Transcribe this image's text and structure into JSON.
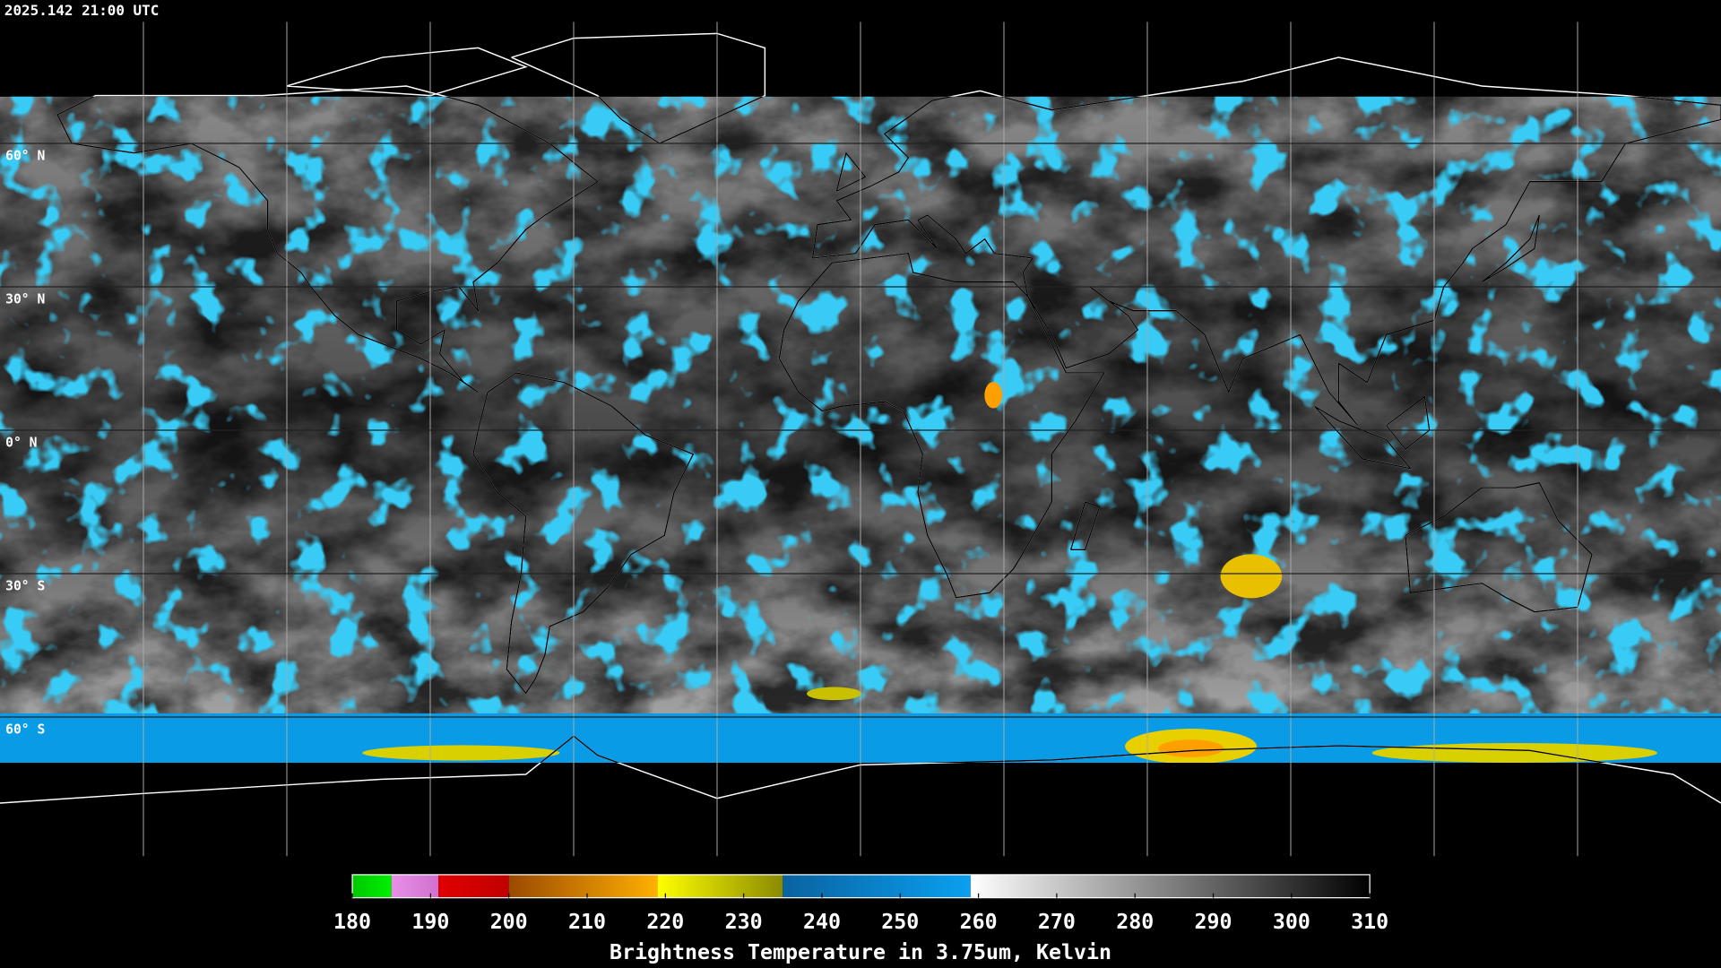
{
  "header": {
    "timestamp": "2025.142 21:00 UTC"
  },
  "map": {
    "latitude_labels": [
      {
        "value": 60,
        "label": "60° N"
      },
      {
        "value": 30,
        "label": "30° N"
      },
      {
        "value": 0,
        "label": "0° N"
      },
      {
        "value": -30,
        "label": "30° S"
      },
      {
        "value": -60,
        "label": "60° S"
      }
    ]
  },
  "colorbar": {
    "title": "Brightness Temperature in 3.75um, Kelvin",
    "range": [
      180,
      310
    ],
    "ticks": [
      180,
      190,
      200,
      210,
      220,
      230,
      240,
      250,
      260,
      270,
      280,
      290,
      300,
      310
    ],
    "segments": [
      {
        "from": 180,
        "to": 185,
        "colors": [
          "#00c800",
          "#00f000"
        ]
      },
      {
        "from": 185,
        "to": 191,
        "colors": [
          "#e890e8",
          "#d070d0"
        ]
      },
      {
        "from": 191,
        "to": 200,
        "colors": [
          "#e00000",
          "#c00000"
        ]
      },
      {
        "from": 200,
        "to": 219,
        "colors": [
          "#9a4a00",
          "#ffb000"
        ]
      },
      {
        "from": 219,
        "to": 235,
        "colors": [
          "#ffff00",
          "#8a8a00"
        ]
      },
      {
        "from": 235,
        "to": 259,
        "colors": [
          "#0a62a0",
          "#0aa0f0"
        ]
      },
      {
        "from": 259,
        "to": 310,
        "colors": [
          "#ffffff",
          "#000000"
        ]
      }
    ]
  }
}
